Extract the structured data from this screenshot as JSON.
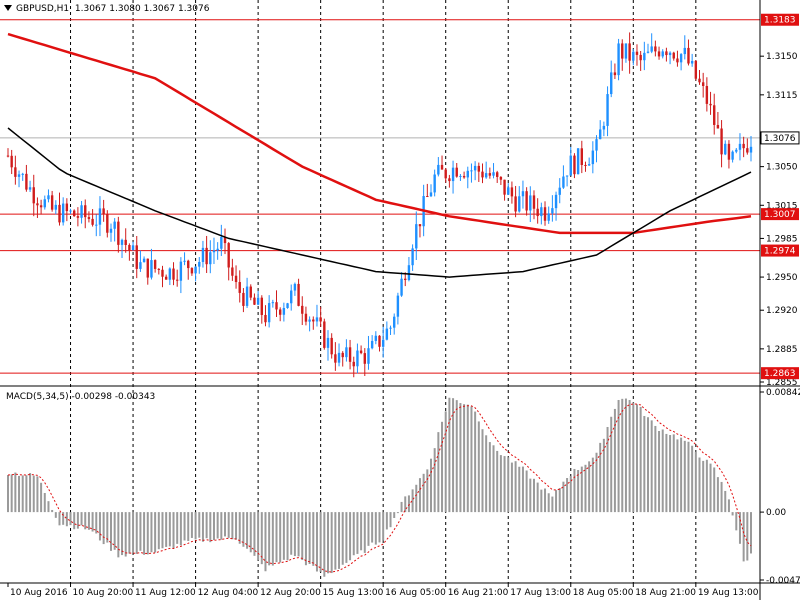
{
  "header": {
    "symbol": "GBPUSD,H1",
    "ohlc": "1.3067 1.3080 1.3067 1.3076"
  },
  "macd": {
    "label": "MACD(5,34,5) -0.00298 -0.00343"
  },
  "colors": {
    "bull_candle": "#1e90ff",
    "bear_candle": "#d01c1c",
    "ma_slow": "#e01010",
    "ma_fast": "#000000",
    "hline": "#e01010",
    "macd_hist": "#9a9a9a",
    "macd_signal": "#e01010",
    "current_price_line": "#b0b0b0"
  },
  "chart_data": [
    {
      "type": "candlestick",
      "title": "GBPUSD,H1",
      "ylim": [
        1.2855,
        1.319
      ],
      "y_ticks": [
        "1.3150",
        "1.3115",
        "1.3050",
        "1.3015",
        "1.2985",
        "1.2950",
        "1.2920",
        "1.2885",
        "1.2855"
      ],
      "x_ticks": [
        "10 Aug 2016",
        "10 Aug 20:00",
        "11 Aug 12:00",
        "12 Aug 04:00",
        "12 Aug 20:00",
        "15 Aug 13:00",
        "16 Aug 05:00",
        "16 Aug 21:00",
        "17 Aug 13:00",
        "18 Aug 05:00",
        "18 Aug 21:00",
        "19 Aug 13:00"
      ],
      "horizontal_levels": [
        {
          "value": 1.3183,
          "label": "1.3183"
        },
        {
          "value": 1.3007,
          "label": "1.3007"
        },
        {
          "value": 1.2974,
          "label": "1.2974"
        },
        {
          "value": 1.2863,
          "label": "1.2863"
        }
      ],
      "current_price": {
        "value": 1.3076,
        "label": "1.3076"
      },
      "close_anchors": [
        [
          0,
          1.306
        ],
        [
          6,
          1.303
        ],
        [
          12,
          1.301
        ],
        [
          20,
          1.3005
        ],
        [
          28,
          1.3
        ],
        [
          36,
          1.296
        ],
        [
          44,
          1.2955
        ],
        [
          52,
          1.2965
        ],
        [
          58,
          1.298
        ],
        [
          62,
          1.294
        ],
        [
          70,
          1.2915
        ],
        [
          78,
          1.2935
        ],
        [
          84,
          1.2905
        ],
        [
          90,
          1.2875
        ],
        [
          98,
          1.288
        ],
        [
          104,
          1.2905
        ],
        [
          110,
          1.2985
        ],
        [
          116,
          1.304
        ],
        [
          122,
          1.305
        ],
        [
          130,
          1.3045
        ],
        [
          138,
          1.302
        ],
        [
          146,
          1.301
        ],
        [
          152,
          1.305
        ],
        [
          160,
          1.3065
        ],
        [
          166,
          1.3155
        ],
        [
          172,
          1.3145
        ],
        [
          178,
          1.316
        ],
        [
          184,
          1.315
        ],
        [
          190,
          1.311
        ],
        [
          196,
          1.305
        ],
        [
          202,
          1.3076
        ]
      ],
      "series": [
        {
          "name": "MA slow",
          "points": [
            [
              0,
              1.317
            ],
            [
              40,
              1.313
            ],
            [
              80,
              1.305
            ],
            [
              100,
              1.302
            ],
            [
              120,
              1.3005
            ],
            [
              150,
              1.299
            ],
            [
              170,
              1.299
            ],
            [
              190,
              1.3
            ],
            [
              202,
              1.3005
            ]
          ]
        },
        {
          "name": "MA fast",
          "points": [
            [
              0,
              1.3085
            ],
            [
              15,
              1.3045
            ],
            [
              40,
              1.301
            ],
            [
              60,
              1.2985
            ],
            [
              80,
              1.297
            ],
            [
              100,
              1.2955
            ],
            [
              120,
              1.295
            ],
            [
              140,
              1.2955
            ],
            [
              160,
              1.297
            ],
            [
              180,
              1.301
            ],
            [
              202,
              1.3045
            ]
          ]
        }
      ]
    },
    {
      "type": "bar",
      "title": "MACD(5,34,5)",
      "ylim": [
        -0.00476,
        0.00842
      ],
      "y_ticks": [
        "0.00842",
        "0.00",
        "-0.00476"
      ],
      "histogram_anchors": [
        [
          0,
          0.0028
        ],
        [
          8,
          0.0025
        ],
        [
          14,
          -0.0008
        ],
        [
          22,
          -0.0012
        ],
        [
          30,
          -0.003
        ],
        [
          40,
          -0.0028
        ],
        [
          50,
          -0.002
        ],
        [
          62,
          -0.0018
        ],
        [
          70,
          -0.004
        ],
        [
          78,
          -0.003
        ],
        [
          86,
          -0.0045
        ],
        [
          94,
          -0.0032
        ],
        [
          102,
          -0.0018
        ],
        [
          108,
          0.001
        ],
        [
          114,
          0.003
        ],
        [
          120,
          0.008
        ],
        [
          126,
          0.0075
        ],
        [
          132,
          0.0045
        ],
        [
          140,
          0.003
        ],
        [
          148,
          0.001
        ],
        [
          152,
          0.0025
        ],
        [
          160,
          0.004
        ],
        [
          166,
          0.008
        ],
        [
          170,
          0.0078
        ],
        [
          176,
          0.006
        ],
        [
          184,
          0.005
        ],
        [
          192,
          0.003
        ],
        [
          196,
          0.001
        ],
        [
          200,
          -0.0035
        ],
        [
          202,
          -0.003
        ]
      ]
    }
  ]
}
